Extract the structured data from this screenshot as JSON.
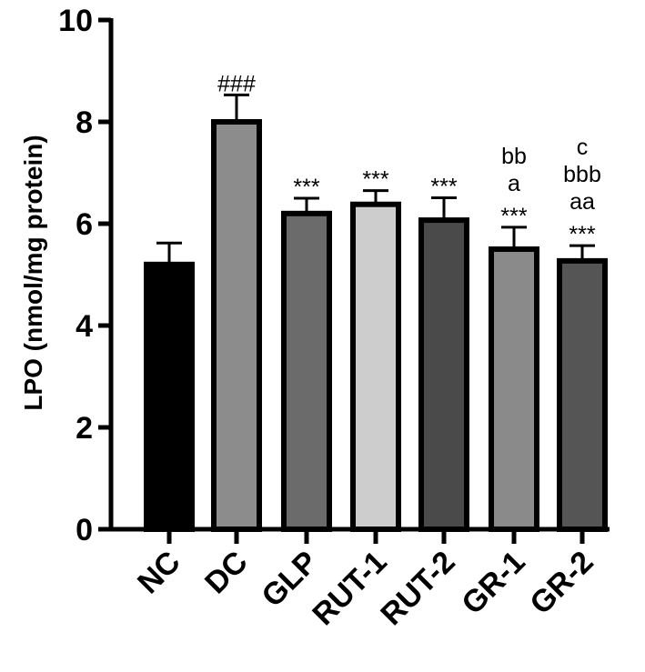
{
  "chart_data": {
    "type": "bar",
    "title": "",
    "xlabel": "",
    "ylabel": "LPO (nmol/mg protein)",
    "ylim": [
      0,
      10
    ],
    "yticks": [
      "0",
      "2",
      "4",
      "6",
      "8",
      "10"
    ],
    "categories": [
      "NC",
      "DC",
      "GLP",
      "RUT-1",
      "RUT-2",
      "GR-1",
      "GR-2"
    ],
    "values": [
      5.2,
      8.0,
      6.2,
      6.38,
      6.07,
      5.5,
      5.27
    ],
    "errors": [
      0.42,
      0.53,
      0.3,
      0.27,
      0.44,
      0.43,
      0.3
    ],
    "colors": [
      "#000000",
      "#8c8c8c",
      "#6b6b6b",
      "#cdcdcd",
      "#4a4a4a",
      "#8a8a8a",
      "#555555"
    ],
    "annotations": [
      [],
      [
        "###"
      ],
      [
        "***"
      ],
      [
        "***"
      ],
      [
        "***"
      ],
      [
        "bb",
        "a",
        "***"
      ],
      [
        "c",
        "bbb",
        "aa",
        "***"
      ]
    ],
    "grid": false,
    "legend": "none"
  }
}
